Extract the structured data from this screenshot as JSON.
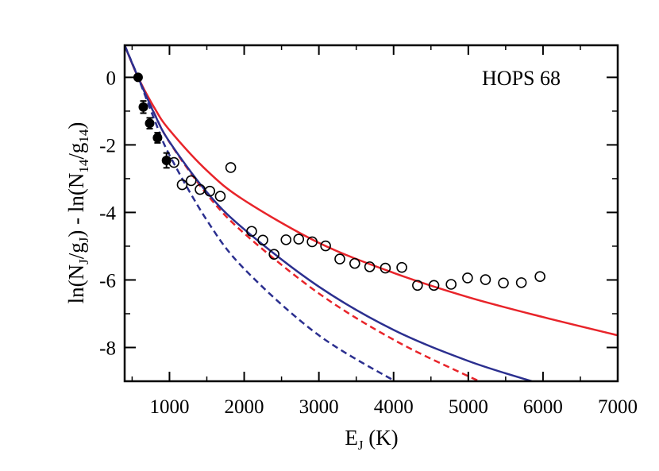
{
  "chart_data": {
    "type": "scatter",
    "annotation": "HOPS 68",
    "xlim": [
      400,
      7000
    ],
    "ylim": [
      -9,
      0.95
    ],
    "x_ticks": [
      1000,
      2000,
      3000,
      4000,
      5000,
      6000,
      7000
    ],
    "y_ticks": [
      0,
      -2,
      -4,
      -6,
      -8
    ],
    "x_tick_labels": [
      "1000",
      "2000",
      "3000",
      "4000",
      "5000",
      "6000",
      "7000"
    ],
    "y_tick_labels": [
      "0",
      "-2",
      "-4",
      "-6",
      "-8"
    ],
    "xlabel_parts": {
      "main": "E",
      "sub": "J",
      "tail": " (K)"
    },
    "ylabel_parts": {
      "p1": "ln(N",
      "s1": "J",
      "p2": "/g",
      "s2": "J",
      "p3": ") - ln(N",
      "s3": "14",
      "p4": "/g",
      "s4": "14",
      "p5": ")"
    },
    "filled_points": [
      {
        "x": 580,
        "y": 0.0,
        "err": 0.08
      },
      {
        "x": 650,
        "y": -0.88,
        "err": 0.18
      },
      {
        "x": 735,
        "y": -1.36,
        "err": 0.16
      },
      {
        "x": 840,
        "y": -1.79,
        "err": 0.15
      },
      {
        "x": 960,
        "y": -2.46,
        "err": 0.22
      }
    ],
    "open_points": [
      {
        "x": 1060,
        "y": -2.52
      },
      {
        "x": 1170,
        "y": -3.18
      },
      {
        "x": 1290,
        "y": -3.06
      },
      {
        "x": 1410,
        "y": -3.32
      },
      {
        "x": 1540,
        "y": -3.37
      },
      {
        "x": 1680,
        "y": -3.52
      },
      {
        "x": 1820,
        "y": -2.67
      },
      {
        "x": 2100,
        "y": -4.56
      },
      {
        "x": 2250,
        "y": -4.82
      },
      {
        "x": 2400,
        "y": -5.24
      },
      {
        "x": 2560,
        "y": -4.81
      },
      {
        "x": 2730,
        "y": -4.79
      },
      {
        "x": 2910,
        "y": -4.87
      },
      {
        "x": 3090,
        "y": -4.99
      },
      {
        "x": 3280,
        "y": -5.38
      },
      {
        "x": 3480,
        "y": -5.51
      },
      {
        "x": 3680,
        "y": -5.61
      },
      {
        "x": 3890,
        "y": -5.65
      },
      {
        "x": 4110,
        "y": -5.63
      },
      {
        "x": 4320,
        "y": -6.16
      },
      {
        "x": 4540,
        "y": -6.16
      },
      {
        "x": 4770,
        "y": -6.13
      },
      {
        "x": 4990,
        "y": -5.94
      },
      {
        "x": 5230,
        "y": -5.99
      },
      {
        "x": 5470,
        "y": -6.09
      },
      {
        "x": 5710,
        "y": -6.08
      },
      {
        "x": 5960,
        "y": -5.9
      }
    ],
    "curves": [
      {
        "color": "#e8242a",
        "dash": false,
        "points": [
          [
            400,
            0.95
          ],
          [
            580,
            0.0
          ],
          [
            800,
            -0.91
          ],
          [
            1000,
            -1.56
          ],
          [
            1500,
            -2.76
          ],
          [
            2000,
            -3.64
          ],
          [
            3000,
            -4.9
          ],
          [
            4000,
            -5.79
          ],
          [
            5000,
            -6.51
          ],
          [
            6000,
            -7.1
          ],
          [
            7000,
            -7.64
          ]
        ]
      },
      {
        "color": "#e8242a",
        "dash": true,
        "points": [
          [
            400,
            0.95
          ],
          [
            580,
            0.0
          ],
          [
            800,
            -1.08
          ],
          [
            1000,
            -1.92
          ],
          [
            1500,
            -3.46
          ],
          [
            2000,
            -4.62
          ],
          [
            3000,
            -6.4
          ],
          [
            4000,
            -7.77
          ],
          [
            5000,
            -8.85
          ],
          [
            5500,
            -9.33
          ]
        ]
      },
      {
        "color": "#2b2f8f",
        "dash": false,
        "points": [
          [
            400,
            0.95
          ],
          [
            580,
            0.0
          ],
          [
            800,
            -1.09
          ],
          [
            1000,
            -1.91
          ],
          [
            1500,
            -3.4
          ],
          [
            2000,
            -4.5
          ],
          [
            3000,
            -6.2
          ],
          [
            4000,
            -7.48
          ],
          [
            5000,
            -8.4
          ],
          [
            5850,
            -9.0
          ]
        ]
      },
      {
        "color": "#2b2f8f",
        "dash": true,
        "points": [
          [
            400,
            0.95
          ],
          [
            580,
            0.0
          ],
          [
            800,
            -1.26
          ],
          [
            1000,
            -2.3
          ],
          [
            1500,
            -4.23
          ],
          [
            2000,
            -5.67
          ],
          [
            3000,
            -7.64
          ],
          [
            4100,
            -9.1
          ]
        ]
      }
    ]
  }
}
